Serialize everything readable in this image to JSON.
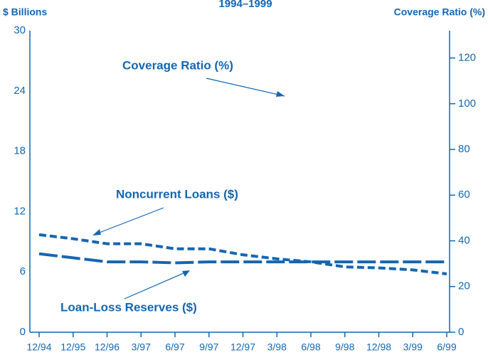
{
  "chart_data": {
    "type": "line",
    "title": "1994–1999",
    "y_label": "$ Billions",
    "y2_label": "Coverage Ratio (%)",
    "annotation": "Coverage Ratio (%)",
    "categories": [
      "12/94",
      "12/95",
      "12/96",
      "3/97",
      "6/97",
      "9/97",
      "12/97",
      "3/98",
      "6/98",
      "9/98",
      "12/98",
      "3/99",
      "6/99"
    ],
    "series": [
      {
        "name": "Noncurrent Loans ($)",
        "color": "#1466b0",
        "dash": "short",
        "values": [
          9.7,
          9.3,
          8.8,
          8.8,
          8.3,
          8.3,
          7.7,
          7.3,
          7.0,
          6.5,
          6.4,
          6.2,
          5.8
        ]
      },
      {
        "name": "Loan-Loss Reserves ($)",
        "color": "#1466b0",
        "dash": "long",
        "values": [
          7.8,
          7.4,
          7.0,
          7.0,
          6.9,
          7.0,
          7.0,
          7.0,
          7.0,
          7.0,
          7.0,
          7.0,
          7.0
        ]
      }
    ],
    "ylim": [
      0,
      30
    ],
    "yticks": [
      0,
      6,
      12,
      18,
      24,
      30
    ],
    "y2lim": [
      0,
      132
    ],
    "y2ticks": [
      0,
      20,
      40,
      60,
      80,
      100,
      120
    ]
  }
}
